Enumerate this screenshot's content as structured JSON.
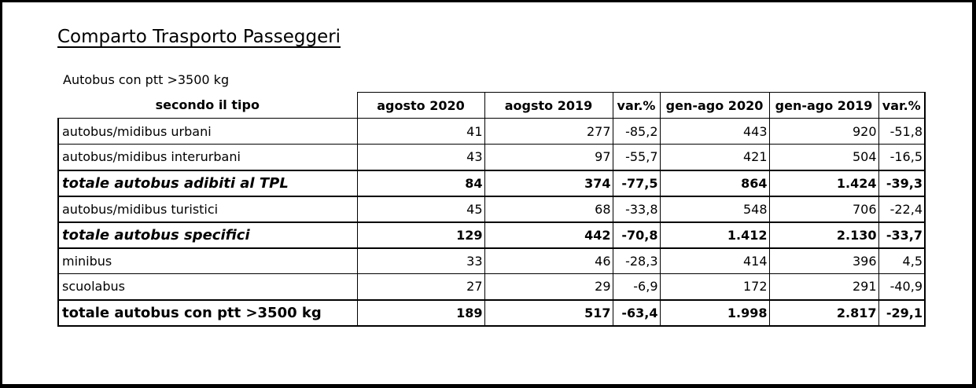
{
  "title": "Comparto Trasporto Passeggeri",
  "subtitle": "Autobus con ptt >3500 kg",
  "table": {
    "corner_label": "secondo il tipo",
    "headers": [
      "agosto 2020",
      "aogsto 2019",
      "var.%",
      "gen-ago 2020",
      "gen-ago 2019",
      "var.%"
    ],
    "rows": [
      {
        "label": "autobus/midibus urbani",
        "values": [
          "41",
          "277",
          "-85,2",
          "443",
          "920",
          "-51,8"
        ],
        "style": "normal"
      },
      {
        "label": "autobus/midibus interurbani",
        "values": [
          "43",
          "97",
          "-55,7",
          "421",
          "504",
          "-16,5"
        ],
        "style": "normal"
      },
      {
        "label": "totale autobus adibiti al TPL",
        "values": [
          "84",
          "374",
          "-77,5",
          "864",
          "1.424",
          "-39,3"
        ],
        "style": "bold-italic"
      },
      {
        "label": "autobus/midibus turistici",
        "values": [
          "45",
          "68",
          "-33,8",
          "548",
          "706",
          "-22,4"
        ],
        "style": "normal"
      },
      {
        "label": "totale autobus specifici",
        "values": [
          "129",
          "442",
          "-70,8",
          "1.412",
          "2.130",
          "-33,7"
        ],
        "style": "bold-italic"
      },
      {
        "label": "minibus",
        "values": [
          "33",
          "46",
          "-28,3",
          "414",
          "396",
          "4,5"
        ],
        "style": "normal"
      },
      {
        "label": "scuolabus",
        "values": [
          "27",
          "29",
          "-6,9",
          "172",
          "291",
          "-40,9"
        ],
        "style": "normal"
      },
      {
        "label": "totale autobus con ptt >3500 kg",
        "values": [
          "189",
          "517",
          "-63,4",
          "1.998",
          "2.817",
          "-29,1"
        ],
        "style": "bold"
      }
    ]
  }
}
